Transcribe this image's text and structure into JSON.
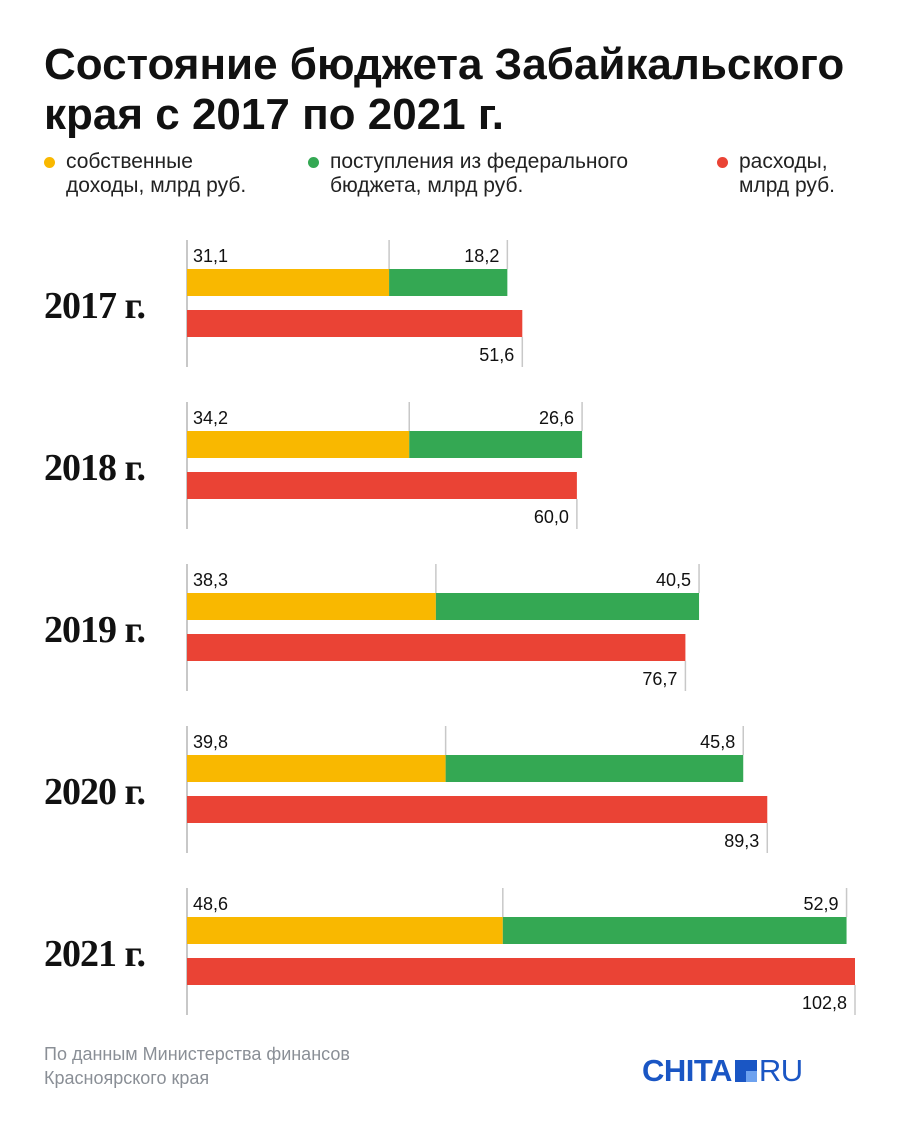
{
  "title": "Состояние бюджета Забайкальского края с 2017 по 2021 г.",
  "legend": [
    {
      "label_line1": "собственные",
      "label_line2": "доходы, млрд руб.",
      "color": "#f9b800"
    },
    {
      "label_line1": "поступления из федерального",
      "label_line2": "бюджета, млрд руб.",
      "color": "#34a853"
    },
    {
      "label_line1": "расходы,",
      "label_line2": "млрд руб.",
      "color": "#ea4335"
    }
  ],
  "footer": {
    "line1": "По данным Министерства финансов",
    "line2": "Красноярского края"
  },
  "logo": {
    "part1": "CHITA",
    "part2": "RU"
  },
  "colors": {
    "own": "#f9b800",
    "federal": "#34a853",
    "expenses": "#ea4335",
    "axis": "#c8c8c8",
    "text": "#111111"
  },
  "chart_data": {
    "type": "bar",
    "orientation": "horizontal",
    "stacked_series": [
      "own",
      "federal"
    ],
    "categories": [
      "2017 г.",
      "2018 г.",
      "2019 г.",
      "2020 г.",
      "2021 г."
    ],
    "series": [
      {
        "key": "own",
        "values": [
          31.1,
          34.2,
          38.3,
          39.8,
          48.6
        ],
        "labels": [
          "31,1",
          "34,2",
          "38,3",
          "39,8",
          "48,6"
        ]
      },
      {
        "key": "federal",
        "values": [
          18.2,
          26.6,
          40.5,
          45.8,
          52.9
        ],
        "labels": [
          "18,2",
          "26,6",
          "40,5",
          "45,8",
          "52,9"
        ]
      },
      {
        "key": "expenses",
        "values": [
          51.6,
          60.0,
          76.7,
          89.3,
          102.8
        ],
        "labels": [
          "51,6",
          "60,0",
          "76,7",
          "89,3",
          "102,8"
        ]
      }
    ],
    "xlim": [
      0,
      102.8
    ],
    "grid": false
  }
}
